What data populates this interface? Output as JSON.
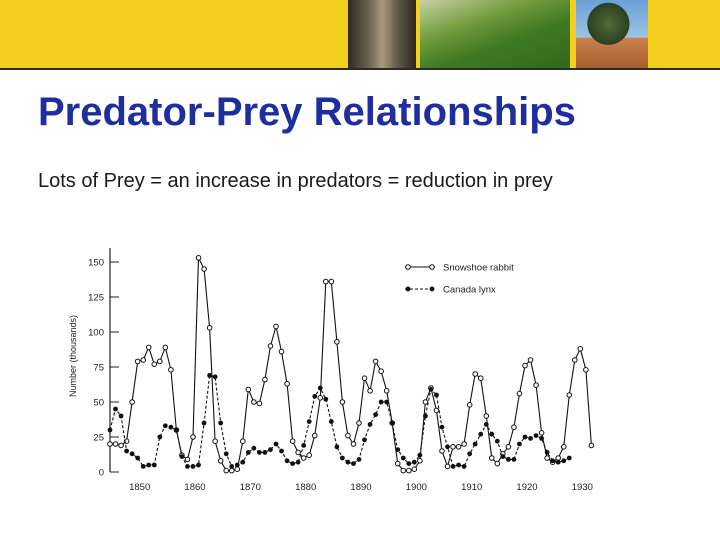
{
  "slide": {
    "title": "Predator-Prey Relationships",
    "subtitle": "Lots of Prey = an increase in predators = reduction in prey"
  },
  "chart_data": {
    "type": "line",
    "ylabel": "Number (thousands)",
    "xlabel": "",
    "xlim": [
      1845,
      1935
    ],
    "ylim": [
      0,
      160
    ],
    "x_ticks": [
      1850,
      1860,
      1870,
      1880,
      1890,
      1900,
      1910,
      1920,
      1930
    ],
    "y_ticks": [
      0,
      25,
      50,
      75,
      100,
      125,
      150
    ],
    "grid": false,
    "legend_position": "top-right",
    "series": [
      {
        "name": "Snowshoe rabbit",
        "marker": "open-circle",
        "line_style": "solid",
        "points": [
          [
            1845,
            20
          ],
          [
            1846,
            20
          ],
          [
            1847,
            19
          ],
          [
            1848,
            22
          ],
          [
            1849,
            50
          ],
          [
            1850,
            79
          ],
          [
            1851,
            80
          ],
          [
            1852,
            89
          ],
          [
            1853,
            77
          ],
          [
            1854,
            79
          ],
          [
            1855,
            89
          ],
          [
            1856,
            73
          ],
          [
            1857,
            30
          ],
          [
            1858,
            12
          ],
          [
            1859,
            9
          ],
          [
            1860,
            25
          ],
          [
            1861,
            153
          ],
          [
            1862,
            145
          ],
          [
            1863,
            103
          ],
          [
            1864,
            22
          ],
          [
            1865,
            8
          ],
          [
            1866,
            1
          ],
          [
            1867,
            1
          ],
          [
            1868,
            2
          ],
          [
            1869,
            22
          ],
          [
            1870,
            59
          ],
          [
            1871,
            50
          ],
          [
            1872,
            49
          ],
          [
            1873,
            66
          ],
          [
            1874,
            90
          ],
          [
            1875,
            104
          ],
          [
            1876,
            86
          ],
          [
            1877,
            63
          ],
          [
            1878,
            22
          ],
          [
            1879,
            14
          ],
          [
            1880,
            10
          ],
          [
            1881,
            12
          ],
          [
            1882,
            26
          ],
          [
            1883,
            53
          ],
          [
            1884,
            136
          ],
          [
            1885,
            136
          ],
          [
            1886,
            93
          ],
          [
            1887,
            50
          ],
          [
            1888,
            26
          ],
          [
            1889,
            20
          ],
          [
            1890,
            35
          ],
          [
            1891,
            67
          ],
          [
            1892,
            58
          ],
          [
            1893,
            79
          ],
          [
            1894,
            72
          ],
          [
            1895,
            58
          ],
          [
            1896,
            35
          ],
          [
            1897,
            6
          ],
          [
            1898,
            1
          ],
          [
            1899,
            1
          ],
          [
            1900,
            2
          ],
          [
            1901,
            8
          ],
          [
            1902,
            50
          ],
          [
            1903,
            60
          ],
          [
            1904,
            44
          ],
          [
            1905,
            15
          ],
          [
            1906,
            4
          ],
          [
            1907,
            18
          ],
          [
            1908,
            18
          ],
          [
            1909,
            20
          ],
          [
            1910,
            48
          ],
          [
            1911,
            70
          ],
          [
            1912,
            67
          ],
          [
            1913,
            40
          ],
          [
            1914,
            10
          ],
          [
            1915,
            6
          ],
          [
            1916,
            13
          ],
          [
            1917,
            18
          ],
          [
            1918,
            32
          ],
          [
            1919,
            56
          ],
          [
            1920,
            76
          ],
          [
            1921,
            80
          ],
          [
            1922,
            62
          ],
          [
            1923,
            28
          ],
          [
            1924,
            10
          ],
          [
            1925,
            7
          ],
          [
            1926,
            10
          ],
          [
            1927,
            18
          ],
          [
            1928,
            55
          ],
          [
            1929,
            80
          ],
          [
            1930,
            88
          ],
          [
            1931,
            73
          ],
          [
            1932,
            19
          ]
        ]
      },
      {
        "name": "Canada lynx",
        "marker": "filled-circle",
        "line_style": "dashed",
        "points": [
          [
            1845,
            30
          ],
          [
            1846,
            45
          ],
          [
            1847,
            40
          ],
          [
            1848,
            15
          ],
          [
            1849,
            13
          ],
          [
            1850,
            10
          ],
          [
            1851,
            4
          ],
          [
            1852,
            5
          ],
          [
            1853,
            5
          ],
          [
            1854,
            25
          ],
          [
            1855,
            33
          ],
          [
            1856,
            32
          ],
          [
            1857,
            30
          ],
          [
            1858,
            11
          ],
          [
            1859,
            4
          ],
          [
            1860,
            4
          ],
          [
            1861,
            5
          ],
          [
            1862,
            35
          ],
          [
            1863,
            69
          ],
          [
            1864,
            68
          ],
          [
            1865,
            35
          ],
          [
            1866,
            13
          ],
          [
            1867,
            4
          ],
          [
            1868,
            5
          ],
          [
            1869,
            7
          ],
          [
            1870,
            14
          ],
          [
            1871,
            17
          ],
          [
            1872,
            14
          ],
          [
            1873,
            14
          ],
          [
            1874,
            16
          ],
          [
            1875,
            20
          ],
          [
            1876,
            15
          ],
          [
            1877,
            8
          ],
          [
            1878,
            6
          ],
          [
            1879,
            7
          ],
          [
            1880,
            19
          ],
          [
            1881,
            36
          ],
          [
            1882,
            54
          ],
          [
            1883,
            60
          ],
          [
            1884,
            52
          ],
          [
            1885,
            36
          ],
          [
            1886,
            18
          ],
          [
            1887,
            10
          ],
          [
            1888,
            7
          ],
          [
            1889,
            6
          ],
          [
            1890,
            9
          ],
          [
            1891,
            23
          ],
          [
            1892,
            34
          ],
          [
            1893,
            41
          ],
          [
            1894,
            50
          ],
          [
            1895,
            50
          ],
          [
            1896,
            35
          ],
          [
            1897,
            16
          ],
          [
            1898,
            10
          ],
          [
            1899,
            6
          ],
          [
            1900,
            7
          ],
          [
            1901,
            12
          ],
          [
            1902,
            40
          ],
          [
            1903,
            59
          ],
          [
            1904,
            55
          ],
          [
            1905,
            32
          ],
          [
            1906,
            18
          ],
          [
            1907,
            4
          ],
          [
            1908,
            5
          ],
          [
            1909,
            4
          ],
          [
            1910,
            13
          ],
          [
            1911,
            20
          ],
          [
            1912,
            27
          ],
          [
            1913,
            34
          ],
          [
            1914,
            27
          ],
          [
            1915,
            22
          ],
          [
            1916,
            11
          ],
          [
            1917,
            9
          ],
          [
            1918,
            9
          ],
          [
            1919,
            20
          ],
          [
            1920,
            25
          ],
          [
            1921,
            24
          ],
          [
            1922,
            26
          ],
          [
            1923,
            24
          ],
          [
            1924,
            14
          ],
          [
            1925,
            8
          ],
          [
            1926,
            7
          ],
          [
            1927,
            8
          ],
          [
            1928,
            10
          ]
        ]
      }
    ]
  }
}
